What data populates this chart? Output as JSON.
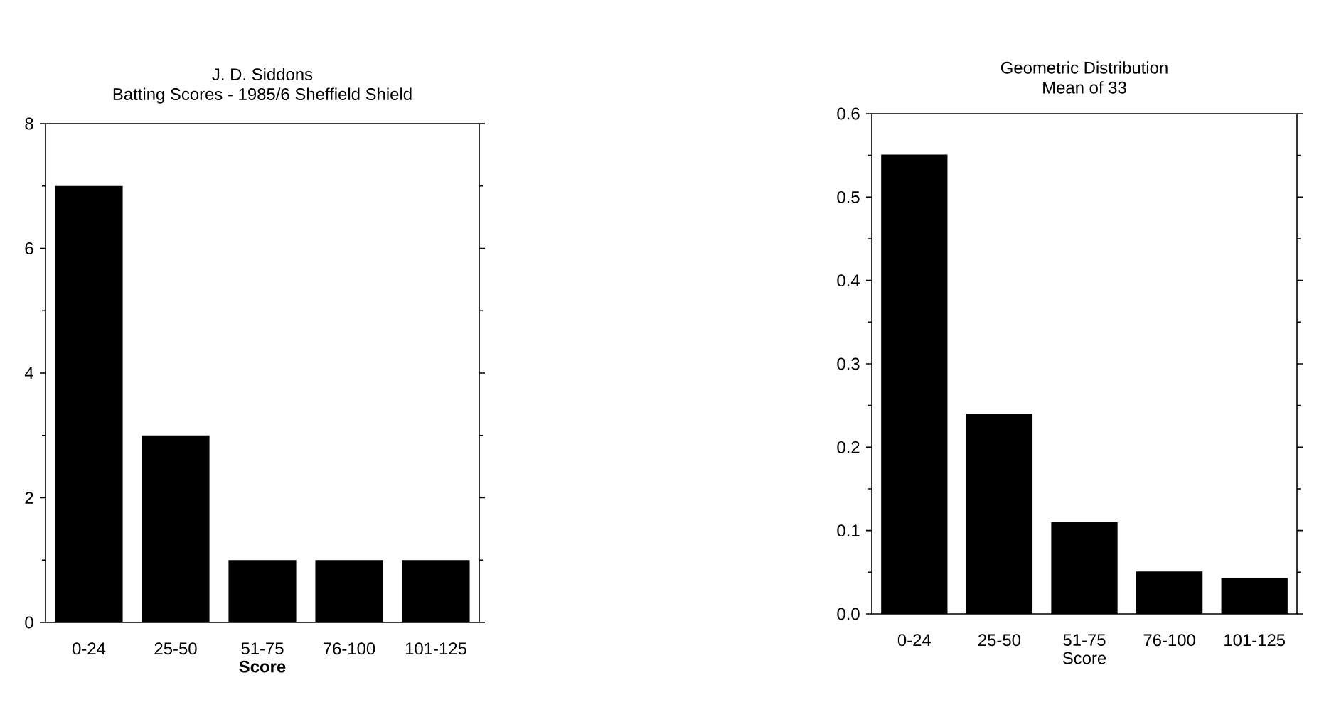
{
  "chart_data": [
    {
      "type": "bar",
      "title": "J. D. Siddons",
      "subtitle": "Batting Scores - 1985/6 Sheffield Shield",
      "xlabel": "Score",
      "categories": [
        "0-24",
        "25-50",
        "51-75",
        "76-100",
        "101-125"
      ],
      "values": [
        7,
        3,
        1,
        1,
        1
      ],
      "color": "#000000",
      "ylim": [
        0,
        8
      ],
      "yticks": [
        0,
        2,
        4,
        6,
        8
      ]
    },
    {
      "type": "bar",
      "title": "Geometric Distribution",
      "subtitle": "Mean of 33",
      "xlabel": "Score",
      "categories": [
        "0-24",
        "25-50",
        "51-75",
        "76-100",
        "101-125"
      ],
      "values": [
        0.551,
        0.24,
        0.11,
        0.051,
        0.043
      ],
      "color": "#000000",
      "ylim": [
        0,
        0.6
      ],
      "yticks": [
        {
          "value": 0,
          "label": "0.0"
        },
        0.1,
        0.2,
        0.3,
        0.4,
        0.5,
        0.6
      ]
    }
  ]
}
